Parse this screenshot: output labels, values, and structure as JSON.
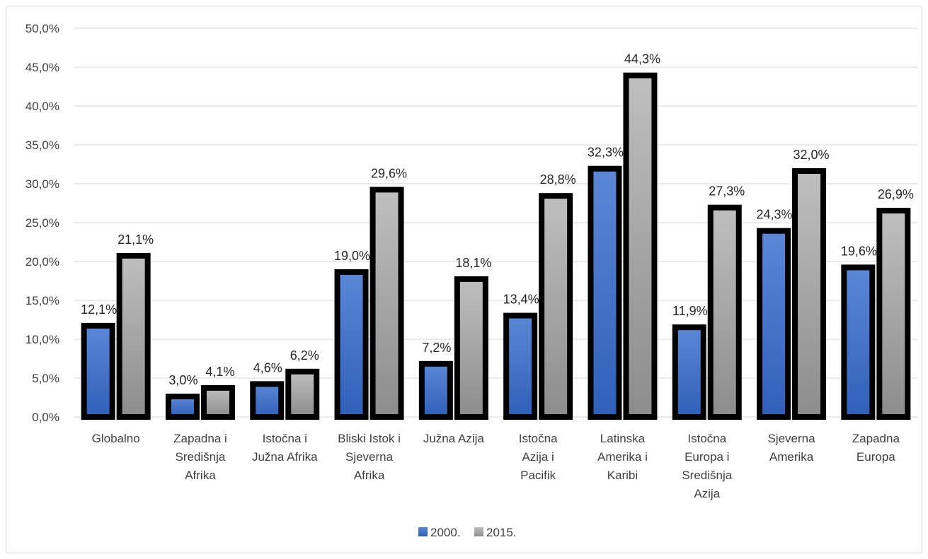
{
  "chart_data": {
    "type": "bar",
    "categories": [
      [
        "Globalno"
      ],
      [
        "Zapadna i",
        "Središnja",
        "Afrika"
      ],
      [
        "Istočna i",
        "Južna Afrika"
      ],
      [
        "Bliski Istok i",
        "Sjeverna",
        "Afrika"
      ],
      [
        "Južna Azija"
      ],
      [
        "Istočna",
        "Azija i",
        "Pacifik"
      ],
      [
        "Latinska",
        "Amerika i",
        "Karibi"
      ],
      [
        "Istočna",
        "Europa i",
        "Središnja",
        "Azija"
      ],
      [
        "Sjeverna",
        "Amerika"
      ],
      [
        "Zapadna",
        "Europa"
      ]
    ],
    "series": [
      {
        "name": "2000.",
        "color": "#4472c4",
        "values": [
          12.1,
          3.0,
          4.6,
          19.0,
          7.2,
          13.4,
          32.3,
          11.9,
          24.3,
          19.6
        ],
        "labels": [
          "12,1%",
          "3,0%",
          "4,6%",
          "19,0%",
          "7,2%",
          "13,4%",
          "32,3%",
          "11,9%",
          "24,3%",
          "19,6%"
        ]
      },
      {
        "name": "2015.",
        "color": "#a5a5a5",
        "values": [
          21.1,
          4.1,
          6.2,
          29.6,
          18.1,
          28.8,
          44.3,
          27.3,
          32.0,
          26.9
        ],
        "labels": [
          "21,1%",
          "4,1%",
          "6,2%",
          "29,6%",
          "18,1%",
          "28,8%",
          "44,3%",
          "27,3%",
          "32,0%",
          "26,9%"
        ]
      }
    ],
    "yticks": [
      "0,0%",
      "5,0%",
      "10,0%",
      "15,0%",
      "20,0%",
      "25,0%",
      "30,0%",
      "35,0%",
      "40,0%",
      "45,0%",
      "50,0%"
    ],
    "ylim": [
      0,
      50
    ],
    "grid": true,
    "legend_position": "bottom",
    "title": "",
    "xlabel": "",
    "ylabel": ""
  }
}
